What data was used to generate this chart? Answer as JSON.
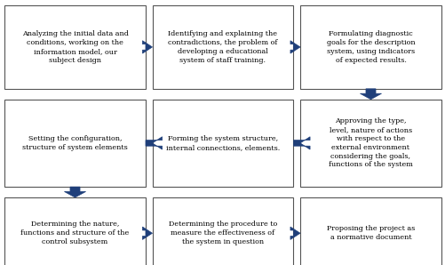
{
  "bg_color": "#ffffff",
  "border_color": "#555555",
  "arrow_color": "#1F3F7A",
  "text_color": "#000000",
  "font_size": 5.8,
  "figw": 5.02,
  "figh": 2.98,
  "dpi": 100,
  "boxes": [
    {
      "id": 0,
      "row": 0,
      "col": 0,
      "text": "Analyzing the initial data and\nconditions, working on the\ninformation model, our\nsubject design"
    },
    {
      "id": 1,
      "row": 0,
      "col": 1,
      "text": "Identifying and explaining the\ncontradictions, the problem of\ndeveloping a educational\nsystem of staff training."
    },
    {
      "id": 2,
      "row": 0,
      "col": 2,
      "text": "Formulating diagnostic\ngoals for the description\nsystem, using indicators\nof expected results."
    },
    {
      "id": 3,
      "row": 1,
      "col": 0,
      "text": "Setting the configuration,\nstructure of system elements"
    },
    {
      "id": 4,
      "row": 1,
      "col": 1,
      "text": "Forming the system structure,\ninternal connections, elements."
    },
    {
      "id": 5,
      "row": 1,
      "col": 2,
      "text": "Approving the type,\nlevel, nature of actions\nwith respect to the\nexternal environment\nconsidering the goals,\nfunctions of the system"
    },
    {
      "id": 6,
      "row": 2,
      "col": 0,
      "text": "Determining the nature,\nfunctions and structure of the\ncontrol subsystem"
    },
    {
      "id": 7,
      "row": 2,
      "col": 1,
      "text": "Determining the procedure to\nmeasure the effectiveness of\nthe system in question"
    },
    {
      "id": 8,
      "row": 2,
      "col": 2,
      "text": "Proposing the project as\na normative document"
    }
  ],
  "arrows": [
    {
      "from": 0,
      "to": 1,
      "direction": "right"
    },
    {
      "from": 1,
      "to": 2,
      "direction": "right"
    },
    {
      "from": 2,
      "to": 5,
      "direction": "down"
    },
    {
      "from": 5,
      "to": 4,
      "direction": "left"
    },
    {
      "from": 4,
      "to": 3,
      "direction": "left"
    },
    {
      "from": 3,
      "to": 6,
      "direction": "down"
    },
    {
      "from": 6,
      "to": 7,
      "direction": "right"
    },
    {
      "from": 7,
      "to": 8,
      "direction": "right"
    }
  ]
}
